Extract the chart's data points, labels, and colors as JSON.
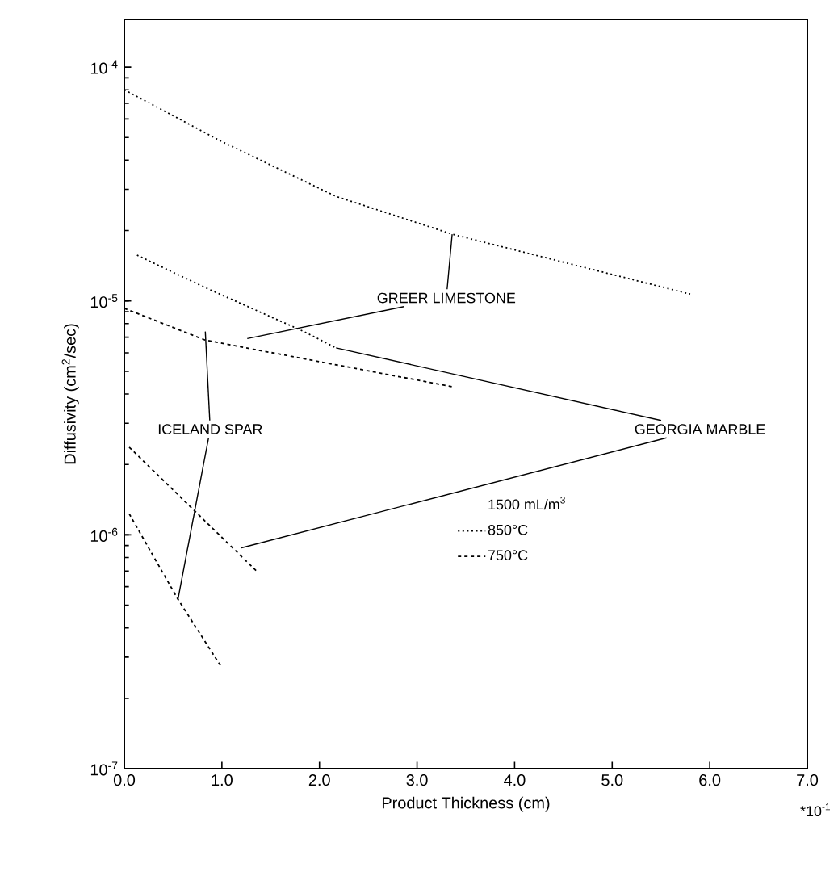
{
  "chart_data": {
    "type": "line",
    "xlabel": "Product Thickness (cm)",
    "ylabel": "Diffusivity (cm$^{2}$/sec)",
    "log": "y",
    "grid": false,
    "marker": "none",
    "legend": "bottom",
    "legend_title": "1500 mL/m$^{3}$",
    "xlim": [
      0,
      7
    ],
    "ylim": [
      1e-07,
      0.00016
    ],
    "xticks": [
      {
        "value": 0,
        "label": "0.0"
      },
      {
        "value": 1,
        "label": "1.0"
      },
      {
        "value": 2,
        "label": "2.0"
      },
      {
        "value": 3,
        "label": "3.0"
      },
      {
        "value": 4,
        "label": "4.0"
      },
      {
        "value": 5,
        "label": "5.0"
      },
      {
        "value": 6,
        "label": "6.0"
      },
      {
        "value": 7,
        "label": "7.0"
      }
    ],
    "yticks": [
      {
        "value": 1e-07,
        "label": "10$^{-7}$"
      },
      {
        "value": 1e-06,
        "label": "10$^{-6}$"
      },
      {
        "value": 1e-05,
        "label": "10$^{-5}$"
      },
      {
        "value": 0.0001,
        "label": "10$^{-4}$"
      }
    ],
    "series": [
      {
        "name": "850°C",
        "color": "#000000",
        "line_style": "dotted",
        "x": [
          0,
          1.0,
          2.17,
          3.36,
          5.8
        ],
        "values": [
          8e-05,
          4.8e-05,
          2.8e-05,
          1.93e-05,
          1.07e-05
        ]
      },
      {
        "color": "#000000",
        "line_style": "dotted",
        "x": [
          0.13,
          0.83,
          1.84,
          2.17
        ],
        "values": [
          1.57e-05,
          1.14e-05,
          7.4e-06,
          6.3e-06
        ]
      },
      {
        "name": "750°C",
        "color": "#000000",
        "line_style": "dashed",
        "x": [
          0,
          0.83,
          3.36
        ],
        "values": [
          9.3e-06,
          6.8e-06,
          4.3e-06
        ]
      },
      {
        "color": "#000000",
        "line_style": "dashed",
        "x": [
          0.05,
          1.37
        ],
        "values": [
          2.37e-06,
          6.9e-07
        ]
      },
      {
        "color": "#000000",
        "line_style": "dashed",
        "x": [
          0.05,
          0.55,
          1.0
        ],
        "values": [
          1.23e-06,
          5.3e-07,
          2.7e-07
        ]
      }
    ],
    "annotations": [
      {
        "text": "GREER LIMESTONE",
        "x": 3.36,
        "y": 1.93e-05
      },
      {
        "text": "ICELAND SPAR",
        "x": 0.83,
        "y": 7.4e-06
      },
      {
        "text": "GEORGIA MARBLE",
        "x": 2.17,
        "y": 6.3e-06
      },
      "*10$^{-1}$"
    ]
  }
}
